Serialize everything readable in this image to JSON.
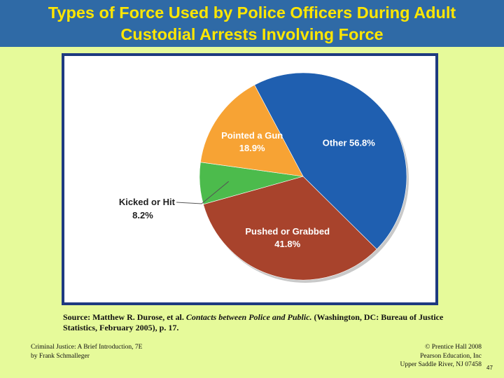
{
  "title": {
    "line1": "Types of Force Used by Police Officers During Adult",
    "line2": "Custodial Arrests Involving Force"
  },
  "colors": {
    "background": "#e6fa9a",
    "title_bar": "#2f6aa6",
    "title_text": "#ffe600",
    "frame": "#1e3a80"
  },
  "chart_data": {
    "type": "pie",
    "slices": [
      {
        "label": "Other",
        "value": 56.8,
        "value_label": "56.8%",
        "color": "#1f5fb0",
        "text_color": "#ffffff"
      },
      {
        "label": "Pushed or Grabbed",
        "value": 41.8,
        "value_label": "41.8%",
        "color": "#a8432c",
        "text_color": "#ffffff"
      },
      {
        "label": "Kicked or Hit",
        "value": 8.2,
        "value_label": "8.2%",
        "color": "#4cbb4c",
        "text_color": "#222222"
      },
      {
        "label": "Pointed a Gun",
        "value": 18.9,
        "value_label": "18.9%",
        "color": "#f7a334",
        "text_color": "#ffffff"
      }
    ]
  },
  "source": {
    "prefix": "Source: Matthew R. Durose, et al.",
    "title_italic": "Contacts between Police and Public.",
    "suffix": "(Washington, DC: Bureau of Justice Statistics, February 2005), p. 17."
  },
  "footer": {
    "left_line1": "Criminal Justice: A Brief Introduction, 7E",
    "left_line2": "by Frank Schmalleger",
    "right_line1": "© Prentice Hall 2008",
    "right_line2": "Pearson Education, Inc",
    "right_line3": "Upper Saddle River, NJ 07458",
    "page_number": "47"
  }
}
